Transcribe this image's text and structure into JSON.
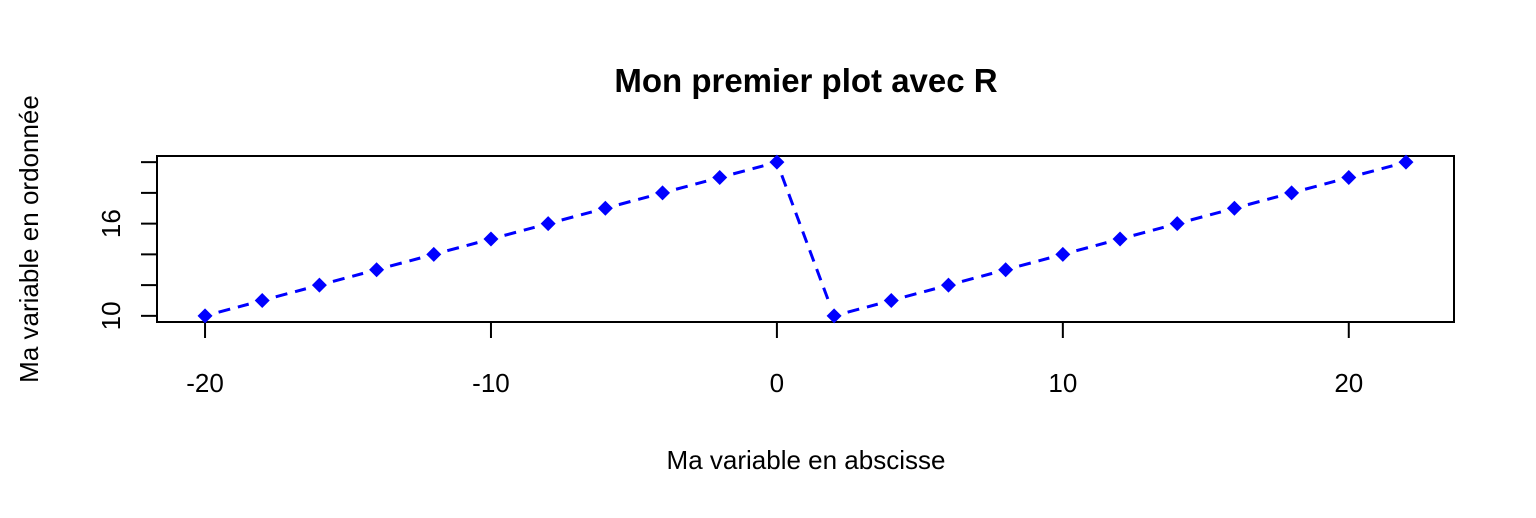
{
  "chart_data": {
    "type": "line",
    "title": "Mon premier plot avec R",
    "xlabel": "Ma variable en abscisse",
    "ylabel": "Ma variable en ordonnée",
    "xlim": [
      -21.68,
      23.68
    ],
    "ylim": [
      9.6,
      20.4
    ],
    "x_ticks": [
      -20,
      -10,
      0,
      10,
      20
    ],
    "x_tick_labels": [
      "-20",
      "-10",
      "0",
      "10",
      "20"
    ],
    "y_ticks": [
      10,
      12,
      14,
      16,
      18,
      20
    ],
    "y_tick_labels": [
      "10",
      "",
      "",
      "16",
      "",
      ""
    ],
    "grid": false,
    "legend": "none",
    "series": [
      {
        "color": "#0000ff",
        "marker": "diamond",
        "line_style": "dashed",
        "x": [
          -20,
          -18,
          -16,
          -14,
          -12,
          -10,
          -8,
          -6,
          -4,
          -2,
          0,
          2,
          4,
          6,
          8,
          10,
          12,
          14,
          16,
          18,
          20,
          22
        ],
        "y": [
          10,
          11,
          12,
          13,
          14,
          15,
          16,
          17,
          18,
          19,
          20,
          10,
          11,
          12,
          13,
          14,
          15,
          16,
          17,
          18,
          19,
          20
        ]
      }
    ]
  }
}
